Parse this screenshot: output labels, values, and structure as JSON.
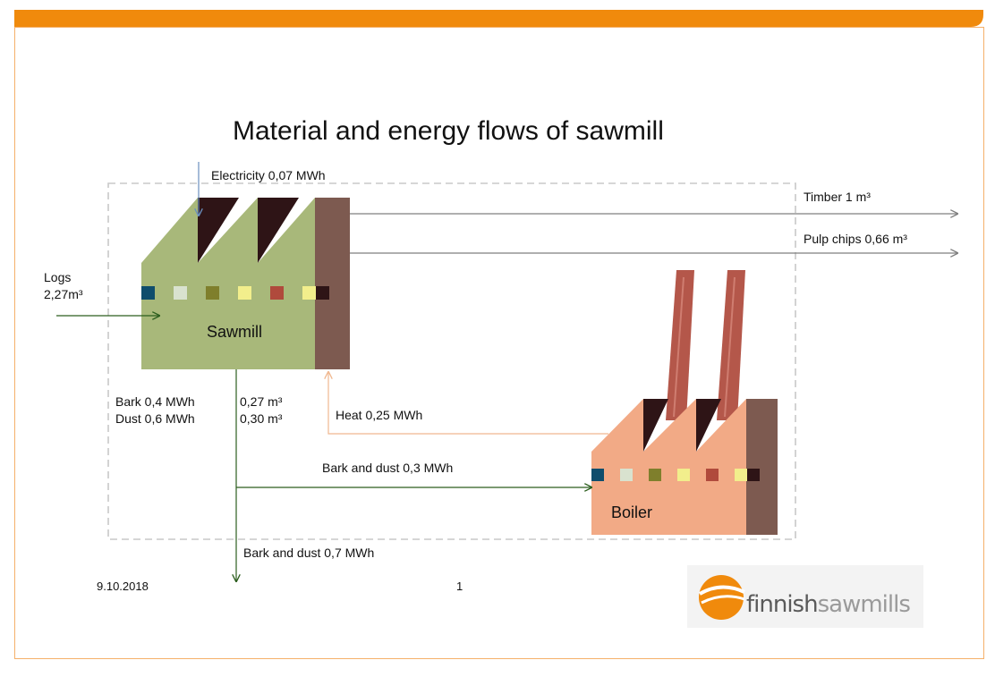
{
  "title": "Material and energy flows of sawmill",
  "colors": {
    "header_bar": "#f08a0c",
    "frame_border": "#f5b06a",
    "sawmill_body": "#a8b87a",
    "sawmill_tower": "#7d5a50",
    "boiler_body": "#f2aa86",
    "roof_dark": "#2e1416",
    "chimney": "#b4574a",
    "flow_green": "#2c5e1e",
    "flow_grey": "#7f7f7f",
    "heat_line": "#f0b890",
    "electricity_line": "#6a8fbf"
  },
  "swatch_colors": [
    "#0f4d6c",
    "#d9e2cf",
    "#7f7f2c",
    "#f2ee8c",
    "#b04a3c",
    "#f2ee8c",
    "#2e1416"
  ],
  "nodes": {
    "sawmill": "Sawmill",
    "boiler": "Boiler"
  },
  "flows": {
    "electricity": "Electricity 0,07 MWh",
    "timber": "Timber 1 m³",
    "pulp_chips": "Pulp chips 0,66 m³",
    "logs_line1": "Logs",
    "logs_line2": "2,27m³",
    "bark_energy": "Bark 0,4 MWh",
    "dust_energy": "Dust 0,6 MWh",
    "bark_volume": "0,27 m³",
    "dust_volume": "0,30 m³",
    "heat": "Heat 0,25 MWh",
    "bark_dust_to_boiler": "Bark and dust 0,3 MWh",
    "bark_dust_out": "Bark and dust 0,7 MWh"
  },
  "footer": {
    "date": "9.10.2018",
    "page_number": "1",
    "logo_text": "finnishsawmills",
    "logo_text_part1": "finnish",
    "logo_text_part2": "sawmills"
  }
}
